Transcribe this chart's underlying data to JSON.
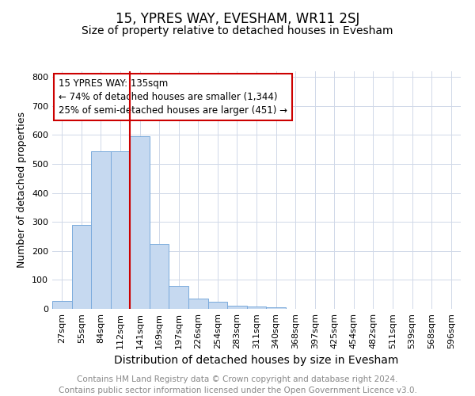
{
  "title": "15, YPRES WAY, EVESHAM, WR11 2SJ",
  "subtitle": "Size of property relative to detached houses in Evesham",
  "xlabel": "Distribution of detached houses by size in Evesham",
  "ylabel": "Number of detached properties",
  "categories": [
    "27sqm",
    "55sqm",
    "84sqm",
    "112sqm",
    "141sqm",
    "169sqm",
    "197sqm",
    "226sqm",
    "254sqm",
    "283sqm",
    "311sqm",
    "340sqm",
    "368sqm",
    "397sqm",
    "425sqm",
    "454sqm",
    "482sqm",
    "511sqm",
    "539sqm",
    "568sqm",
    "596sqm"
  ],
  "values": [
    28,
    290,
    545,
    545,
    595,
    225,
    78,
    35,
    25,
    10,
    8,
    5,
    0,
    0,
    0,
    0,
    0,
    0,
    0,
    0,
    0
  ],
  "bar_color": "#c6d9f0",
  "bar_edge_color": "#7aaadc",
  "property_line_color": "#cc0000",
  "annotation_line1": "15 YPRES WAY: 135sqm",
  "annotation_line2": "← 74% of detached houses are smaller (1,344)",
  "annotation_line3": "25% of semi-detached houses are larger (451) →",
  "annotation_box_color": "#ffffff",
  "annotation_box_edge": "#cc0000",
  "ylim": [
    0,
    820
  ],
  "yticks": [
    0,
    100,
    200,
    300,
    400,
    500,
    600,
    700,
    800
  ],
  "footer_text": "Contains HM Land Registry data © Crown copyright and database right 2024.\nContains public sector information licensed under the Open Government Licence v3.0.",
  "title_fontsize": 12,
  "subtitle_fontsize": 10,
  "xlabel_fontsize": 10,
  "ylabel_fontsize": 9,
  "tick_fontsize": 8,
  "annotation_fontsize": 8.5,
  "footer_fontsize": 7.5
}
